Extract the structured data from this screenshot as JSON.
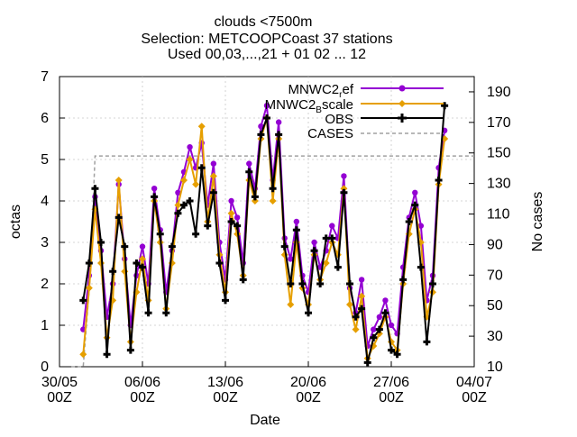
{
  "chart_data": {
    "type": "line",
    "title_lines": [
      "clouds <7500m",
      "Selection: METCOOPCoast     37 stations",
      "Used 00,03,...,21 + 01 02 ... 12"
    ],
    "xlabel": "Date",
    "ylabel": "octas",
    "y2label": "No cases",
    "xlim_days": [
      0,
      35
    ],
    "ylim": [
      0,
      7
    ],
    "y2lim": [
      10,
      200
    ],
    "x_ticks": [
      {
        "day": 0,
        "line1": "30/05",
        "line2": "00Z"
      },
      {
        "day": 7,
        "line1": "06/06",
        "line2": "00Z"
      },
      {
        "day": 14,
        "line1": "13/06",
        "line2": "00Z"
      },
      {
        "day": 21,
        "line1": "20/06",
        "line2": "00Z"
      },
      {
        "day": 28,
        "line1": "27/06",
        "line2": "00Z"
      },
      {
        "day": 35,
        "line1": "04/07",
        "line2": "00Z"
      }
    ],
    "y_ticks": [
      "0",
      "1",
      "2",
      "3",
      "4",
      "5",
      "6",
      "7"
    ],
    "y2_ticks": [
      "10",
      "30",
      "50",
      "70",
      "90",
      "110",
      "130",
      "150",
      "170",
      "190"
    ],
    "legend_position": "top-right",
    "series": [
      {
        "name": "MNWC2_ref",
        "legend_main": "MNWC2",
        "legend_sub": "r",
        "legend_tail": "ef",
        "color": "#9400d3",
        "x": [
          2.0,
          2.5,
          3.0,
          3.5,
          4.0,
          4.5,
          5.0,
          5.5,
          6.0,
          6.5,
          7.0,
          7.5,
          8.0,
          8.5,
          9.0,
          9.5,
          10.0,
          10.5,
          11.0,
          11.5,
          12.0,
          12.5,
          13.0,
          13.5,
          14.0,
          14.5,
          15.0,
          15.5,
          16.0,
          16.5,
          17.0,
          17.5,
          18.0,
          18.5,
          19.0,
          19.5,
          20.0,
          20.5,
          21.0,
          21.5,
          22.0,
          22.5,
          23.0,
          23.5,
          24.0,
          24.5,
          25.0,
          25.5,
          26.0,
          26.5,
          27.0,
          27.5,
          28.0,
          28.5,
          29.0,
          29.5,
          30.0,
          30.5,
          31.0,
          31.5,
          32.0,
          32.5
        ],
        "y": [
          0.9,
          2.2,
          4.1,
          2.8,
          1.2,
          2.0,
          4.4,
          2.6,
          1.0,
          2.2,
          2.9,
          2.0,
          4.3,
          3.3,
          1.8,
          2.8,
          4.2,
          4.7,
          5.3,
          4.8,
          5.4,
          3.9,
          4.9,
          3.0,
          2.1,
          4.0,
          3.6,
          2.5,
          4.9,
          4.3,
          5.8,
          6.3,
          4.5,
          5.9,
          3.1,
          2.6,
          3.5,
          2.2,
          1.8,
          3.0,
          2.4,
          2.8,
          3.4,
          3.1,
          4.6,
          1.9,
          1.3,
          2.1,
          0.5,
          0.9,
          1.2,
          1.6,
          1.0,
          0.8,
          2.4,
          3.6,
          4.2,
          3.4,
          1.6,
          2.2,
          4.8,
          5.7
        ]
      },
      {
        "name": "MNWC2_Bscale",
        "legend_main": "MNWC2",
        "legend_sub": "B",
        "legend_tail": "scale",
        "color": "#e69f00",
        "x": [
          2.0,
          2.5,
          3.0,
          3.5,
          4.0,
          4.5,
          5.0,
          5.5,
          6.0,
          6.5,
          7.0,
          7.5,
          8.0,
          8.5,
          9.0,
          9.5,
          10.0,
          10.5,
          11.0,
          11.5,
          12.0,
          12.5,
          13.0,
          13.5,
          14.0,
          14.5,
          15.0,
          15.5,
          16.0,
          16.5,
          17.0,
          17.5,
          18.0,
          18.5,
          19.0,
          19.5,
          20.0,
          20.5,
          21.0,
          21.5,
          22.0,
          22.5,
          23.0,
          23.5,
          24.0,
          24.5,
          25.0,
          25.5,
          26.0,
          26.5,
          27.0,
          27.5,
          28.0,
          28.5,
          29.0,
          29.5,
          30.0,
          30.5,
          31.0,
          31.5,
          32.0,
          32.5
        ],
        "y": [
          0.3,
          1.9,
          3.8,
          2.5,
          0.7,
          1.6,
          4.5,
          2.3,
          0.6,
          1.8,
          2.6,
          1.6,
          4.0,
          3.0,
          1.4,
          2.5,
          3.9,
          4.5,
          5.0,
          4.4,
          5.8,
          3.5,
          4.6,
          2.7,
          1.8,
          3.7,
          3.2,
          2.2,
          4.5,
          4.0,
          5.5,
          6.0,
          4.0,
          5.5,
          2.7,
          1.5,
          3.0,
          1.9,
          1.5,
          2.7,
          2.1,
          2.5,
          3.0,
          2.7,
          4.3,
          1.5,
          0.9,
          1.7,
          0.2,
          0.5,
          0.8,
          1.2,
          0.6,
          0.4,
          2.0,
          3.2,
          3.8,
          3.0,
          1.2,
          1.8,
          4.4,
          5.5
        ]
      },
      {
        "name": "OBS",
        "legend_main": "OBS",
        "legend_sub": "",
        "legend_tail": "",
        "color": "#000000",
        "x": [
          2.0,
          2.5,
          3.0,
          3.5,
          4.0,
          4.5,
          5.0,
          5.5,
          6.0,
          6.5,
          7.0,
          7.5,
          8.0,
          8.5,
          9.0,
          9.5,
          10.0,
          10.5,
          11.0,
          11.5,
          12.0,
          12.5,
          13.0,
          13.5,
          14.0,
          14.5,
          15.0,
          15.5,
          16.0,
          16.5,
          17.0,
          17.5,
          18.0,
          18.5,
          19.0,
          19.5,
          20.0,
          20.5,
          21.0,
          21.5,
          22.0,
          22.5,
          23.0,
          23.5,
          24.0,
          24.5,
          25.0,
          25.5,
          26.0,
          26.5,
          27.0,
          27.5,
          28.0,
          28.5,
          29.0,
          29.5,
          30.0,
          30.5,
          31.0,
          31.5,
          32.0,
          32.5
        ],
        "y": [
          1.6,
          2.5,
          4.3,
          3.0,
          0.3,
          2.3,
          3.6,
          2.9,
          0.4,
          2.5,
          2.4,
          1.3,
          4.1,
          3.2,
          1.3,
          2.9,
          3.7,
          3.9,
          4.0,
          3.2,
          4.8,
          3.4,
          4.2,
          2.5,
          1.6,
          3.5,
          3.4,
          2.1,
          4.7,
          4.1,
          5.6,
          6.0,
          4.3,
          5.6,
          2.9,
          2.0,
          3.3,
          2.0,
          1.3,
          2.8,
          2.0,
          3.1,
          3.1,
          2.4,
          4.2,
          2.0,
          1.2,
          1.4,
          0.1,
          0.7,
          0.9,
          1.3,
          0.4,
          0.3,
          2.1,
          3.5,
          3.9,
          2.4,
          0.6,
          2.0,
          4.5,
          6.3
        ]
      }
    ],
    "cases": {
      "name": "CASES",
      "color": "#a0a0a0",
      "x": [
        1.0,
        2.0,
        2.6,
        3.0,
        35.0
      ],
      "y2": [
        10,
        10,
        70,
        148,
        148
      ],
      "note": "approx 148 cases from ~2 Jun to ~3 Jul (dashed line, right axis)"
    }
  }
}
